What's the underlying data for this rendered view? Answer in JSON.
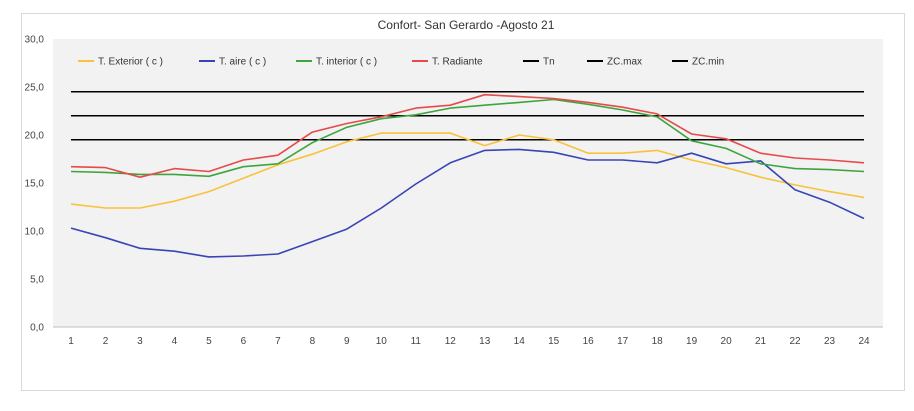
{
  "chart_data": {
    "type": "line",
    "title": "Confort- San Gerardo  -Agosto 21",
    "xlabel": "",
    "ylabel": "",
    "x": [
      1,
      2,
      3,
      4,
      5,
      6,
      7,
      8,
      9,
      10,
      11,
      12,
      13,
      14,
      15,
      16,
      17,
      18,
      19,
      20,
      21,
      22,
      23,
      24
    ],
    "x_tick_labels": [
      "1",
      "2",
      "3",
      "4",
      "5",
      "6",
      "7",
      "8",
      "9",
      "10",
      "11",
      "12",
      "13",
      "14",
      "15",
      "16",
      "17",
      "18",
      "19",
      "20",
      "21",
      "22",
      "23",
      "24"
    ],
    "ylim": [
      0,
      30
    ],
    "y_ticks": [
      0,
      5,
      10,
      15,
      20,
      25,
      30
    ],
    "y_tick_labels": [
      "0,0",
      "5,0",
      "10,0",
      "15,0",
      "20,0",
      "25,0",
      "30,0"
    ],
    "grid": false,
    "plot_background": "#f2f2f2",
    "legend_position": "top",
    "series": [
      {
        "name": "T. Exterior ( c )",
        "color": "#f9c23c",
        "values": [
          12.8,
          12.4,
          12.4,
          13.1,
          14.1,
          15.5,
          16.9,
          18.0,
          19.3,
          20.2,
          20.2,
          20.2,
          18.9,
          20.0,
          19.5,
          18.1,
          18.1,
          18.4,
          17.4,
          16.6,
          15.6,
          14.8,
          14.1,
          13.5
        ]
      },
      {
        "name": "T. aire ( c )",
        "color": "#3845b4",
        "values": [
          10.3,
          9.3,
          8.2,
          7.9,
          7.3,
          7.4,
          7.6,
          8.9,
          10.2,
          12.4,
          14.9,
          17.1,
          18.4,
          18.5,
          18.2,
          17.4,
          17.4,
          17.1,
          18.1,
          17.0,
          17.3,
          14.3,
          13.0,
          11.3
        ]
      },
      {
        "name": "T. interior ( c )",
        "color": "#3ea53e",
        "values": [
          16.2,
          16.1,
          15.9,
          15.9,
          15.7,
          16.7,
          17.0,
          19.2,
          20.8,
          21.7,
          22.1,
          22.8,
          23.1,
          23.4,
          23.7,
          23.2,
          22.6,
          21.9,
          19.4,
          18.6,
          17.0,
          16.5,
          16.4,
          16.2
        ]
      },
      {
        "name": "T. Radiante",
        "color": "#e64a4a",
        "values": [
          16.7,
          16.6,
          15.6,
          16.5,
          16.2,
          17.4,
          17.9,
          20.3,
          21.2,
          21.9,
          22.8,
          23.1,
          24.2,
          24.0,
          23.8,
          23.4,
          22.9,
          22.2,
          20.1,
          19.6,
          18.1,
          17.6,
          17.4,
          17.1
        ]
      },
      {
        "name": "Tn",
        "color": "#000000",
        "constant": 22.0
      },
      {
        "name": "ZC.max",
        "color": "#000000",
        "constant": 24.5
      },
      {
        "name": "ZC.min",
        "color": "#000000",
        "constant": 19.5
      }
    ]
  }
}
